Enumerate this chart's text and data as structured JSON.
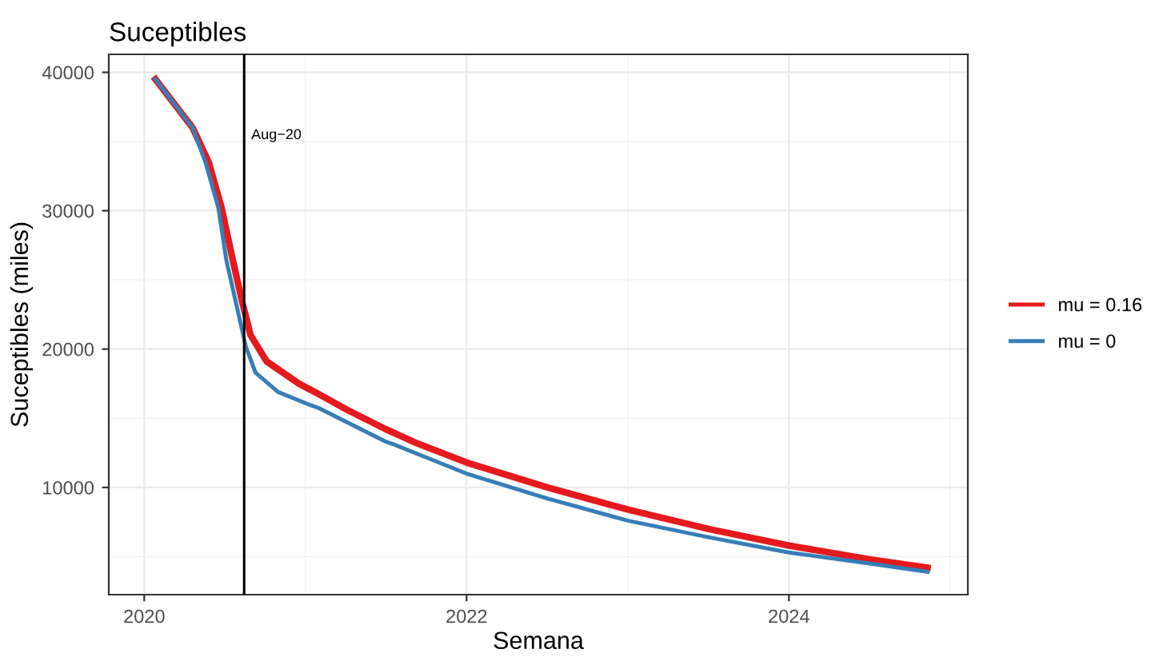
{
  "chart_data": {
    "type": "line",
    "title": "Suceptibles",
    "xlabel": "Semana",
    "ylabel": "Suceptibles (miles)",
    "xlim": [
      2019.78,
      2025.11
    ],
    "ylim": [
      2250,
      41300
    ],
    "xticks": [
      {
        "value": 2020,
        "label": "2020"
      },
      {
        "value": 2021,
        "label": null
      },
      {
        "value": 2022,
        "label": "2022"
      },
      {
        "value": 2023,
        "label": null
      },
      {
        "value": 2024,
        "label": "2024"
      },
      {
        "value": 2025,
        "label": null
      }
    ],
    "yticks": [
      {
        "value": 5000,
        "label": null
      },
      {
        "value": 10000,
        "label": "10000"
      },
      {
        "value": 15000,
        "label": null
      },
      {
        "value": 20000,
        "label": "20000"
      },
      {
        "value": 25000,
        "label": null
      },
      {
        "value": 30000,
        "label": "30000"
      },
      {
        "value": 35000,
        "label": null
      },
      {
        "value": 40000,
        "label": "40000"
      }
    ],
    "grid": true,
    "legend": "right",
    "line_style": "solid",
    "marker": "none",
    "ref_lines": [
      {
        "axis": "x",
        "value": 2020.62,
        "label": "Aug−20",
        "color": "#000000"
      }
    ],
    "series": [
      {
        "name": "mu = 0.16",
        "color": "#e41a1c",
        "x": [
          2020.07,
          2020.3,
          2020.4,
          2020.48,
          2020.55,
          2020.61,
          2020.66,
          2020.76,
          2020.96,
          2021.09,
          2021.26,
          2021.5,
          2021.69,
          2022,
          2022.5,
          2023,
          2023.5,
          2024,
          2024.5,
          2024.86
        ],
        "values": [
          39500,
          36000,
          33500,
          30200,
          26400,
          23300,
          21000,
          19100,
          17500,
          16700,
          15600,
          14200,
          13200,
          11800,
          10000,
          8400,
          7000,
          5800,
          4800,
          4200
        ]
      },
      {
        "name": "mu = 0",
        "color": "#377eb8",
        "x": [
          2020.07,
          2020.3,
          2020.38,
          2020.46,
          2020.51,
          2020.57,
          2020.63,
          2020.69,
          2020.83,
          2021.02,
          2021.09,
          2021.5,
          2021.55,
          2022,
          2022.5,
          2023,
          2023.5,
          2024,
          2024.5,
          2024.86
        ],
        "values": [
          39500,
          36000,
          33500,
          30200,
          26400,
          23300,
          20200,
          18300,
          16900,
          16000,
          15700,
          13300,
          13100,
          11000,
          9200,
          7600,
          6400,
          5300,
          4500,
          3900
        ]
      }
    ]
  }
}
